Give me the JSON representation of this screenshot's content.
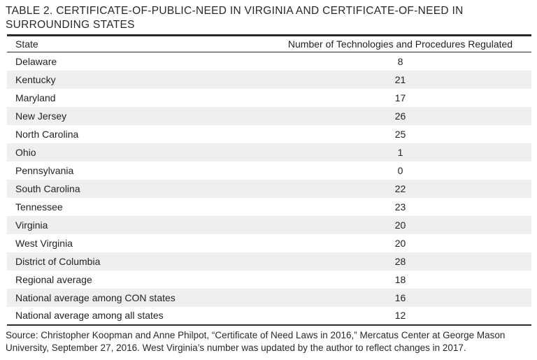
{
  "title": "TABLE 2. CERTIFICATE-OF-PUBLIC-NEED IN VIRGINIA AND CERTIFICATE-OF-NEED IN SURROUNDING STATES",
  "table": {
    "columns": [
      "State",
      "Number of Technologies and Procedures Regulated"
    ],
    "rows": [
      {
        "state": "Delaware",
        "value": "8"
      },
      {
        "state": "Kentucky",
        "value": "21"
      },
      {
        "state": "Maryland",
        "value": "17"
      },
      {
        "state": "New Jersey",
        "value": "26"
      },
      {
        "state": "North Carolina",
        "value": "25"
      },
      {
        "state": "Ohio",
        "value": "1"
      },
      {
        "state": "Pennsylvania",
        "value": "0"
      },
      {
        "state": "South Carolina",
        "value": "22"
      },
      {
        "state": "Tennessee",
        "value": "23"
      },
      {
        "state": "Virginia",
        "value": "20"
      },
      {
        "state": "West Virginia",
        "value": "20"
      },
      {
        "state": "District of Columbia",
        "value": "28"
      },
      {
        "state": "Regional average",
        "value": "18"
      },
      {
        "state": "National average among CON states",
        "value": "16"
      },
      {
        "state": "National average among all states",
        "value": "12"
      }
    ]
  },
  "source": "Source: Christopher Koopman and Anne Philpot, “Certificate of Need Laws in 2016,” Mercatus Center at George Mason University, September 27, 2016. West Virginia’s number was updated by the author to reflect changes in 2017.",
  "colors": {
    "row_shade": "#f0eff0",
    "text": "#231f20",
    "rule": "#2d292a"
  }
}
